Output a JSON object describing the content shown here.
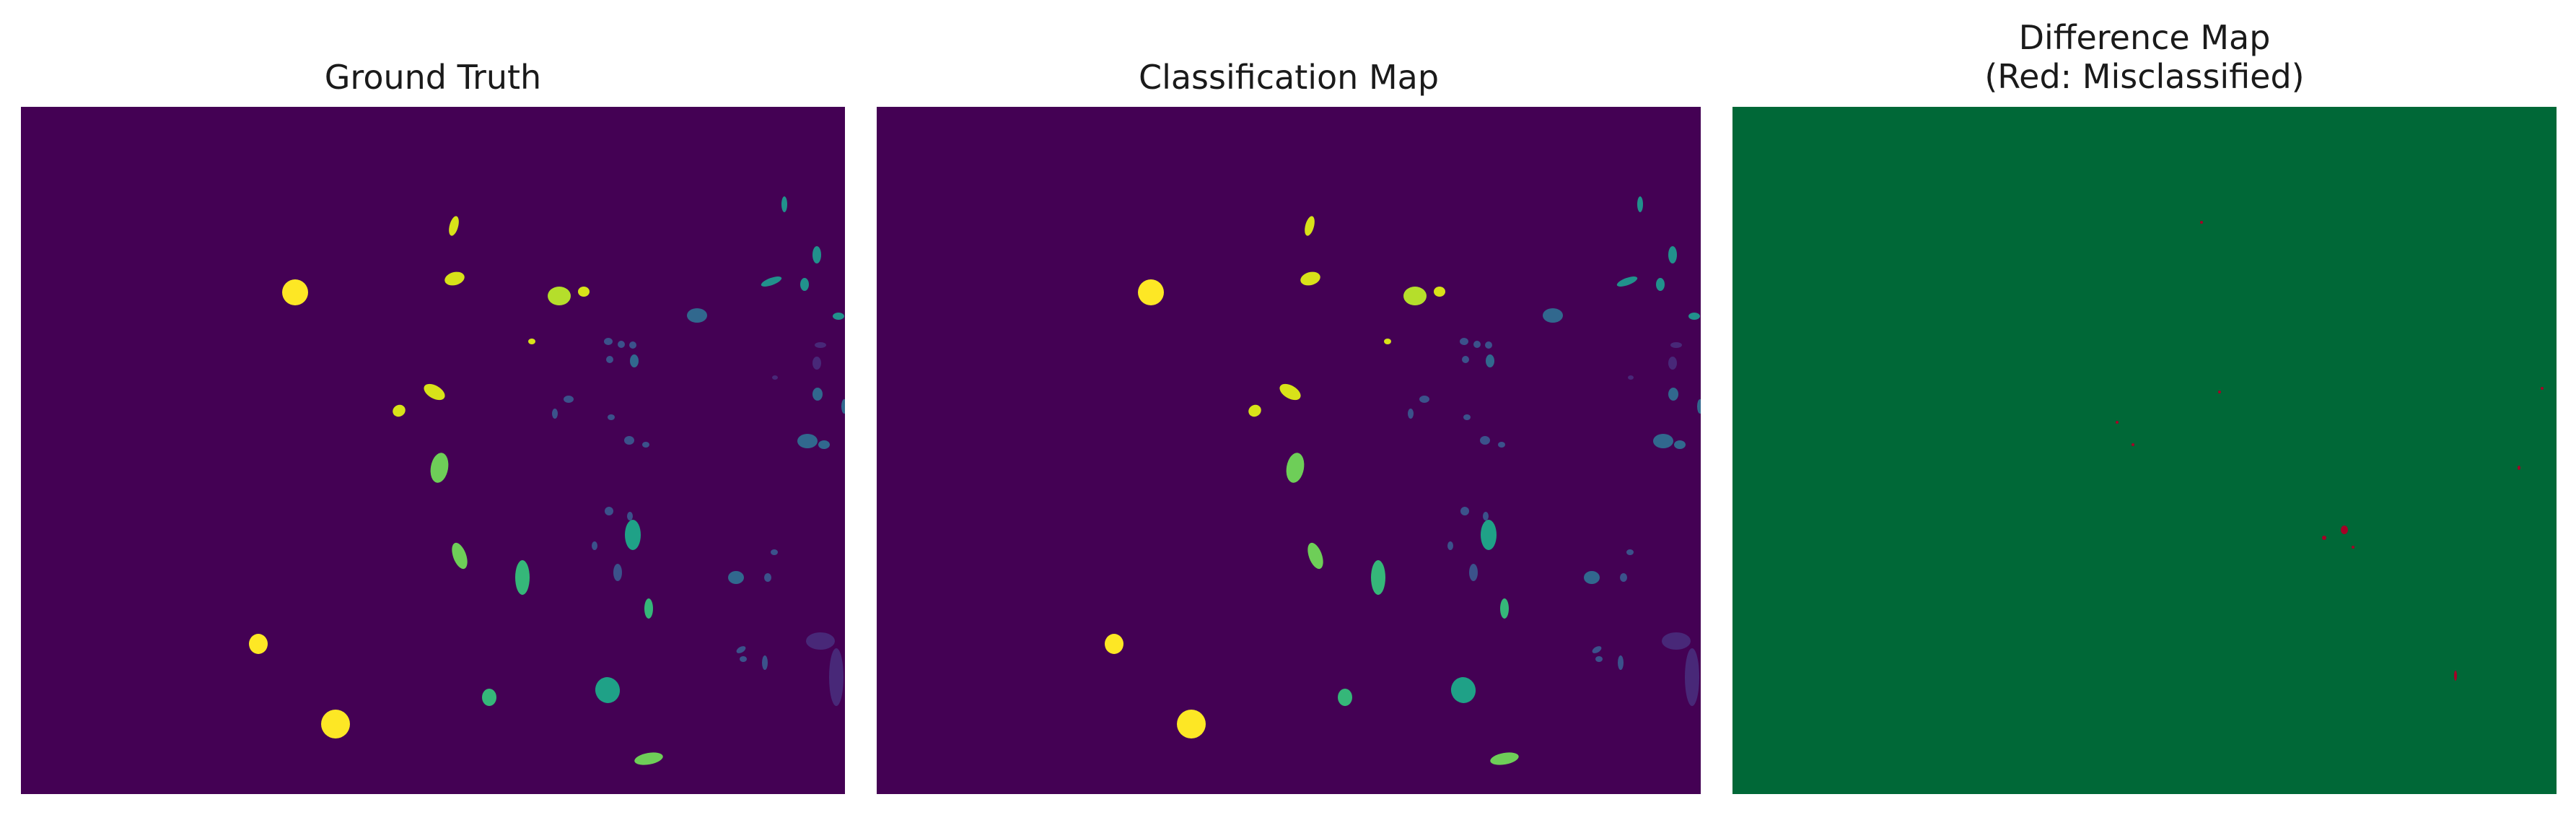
{
  "panels": [
    {
      "id": "ground_truth",
      "title": "Ground Truth"
    },
    {
      "id": "classification_map",
      "title": "Classification Map"
    },
    {
      "id": "difference_map",
      "title": "Difference Map\n(Red: Misclassified)"
    }
  ],
  "colors": {
    "background_class": "#440154",
    "correct": "#006837",
    "misclassified": "#a50026",
    "class_palette": [
      "#3b528b",
      "#31688e",
      "#21918c",
      "#1fa187",
      "#35b779",
      "#6ece58",
      "#b5de2b",
      "#d8e219",
      "#fde725",
      "#482878"
    ]
  }
}
